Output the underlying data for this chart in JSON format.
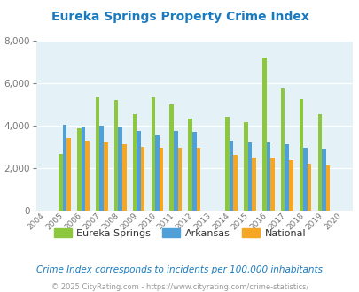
{
  "title": "Eureka Springs Property Crime Index",
  "title_color": "#1a7abf",
  "years": [
    2004,
    2005,
    2006,
    2007,
    2008,
    2009,
    2010,
    2011,
    2012,
    2013,
    2014,
    2015,
    2016,
    2017,
    2018,
    2019,
    2020
  ],
  "eureka_springs": [
    0,
    2650,
    3850,
    5350,
    5200,
    4550,
    5350,
    5000,
    4350,
    0,
    4400,
    4150,
    7200,
    5750,
    5250,
    4550,
    0
  ],
  "arkansas": [
    0,
    4050,
    3950,
    4000,
    3900,
    3750,
    3550,
    3750,
    3700,
    0,
    3300,
    3200,
    3200,
    3100,
    2950,
    2900,
    0
  ],
  "national": [
    0,
    3400,
    3300,
    3200,
    3100,
    3000,
    2950,
    2950,
    2950,
    0,
    2600,
    2500,
    2500,
    2350,
    2200,
    2100,
    0
  ],
  "bar_colors": [
    "#8dc63f",
    "#4fa0d8",
    "#f5a623"
  ],
  "ylim": [
    0,
    8000
  ],
  "yticks": [
    0,
    2000,
    4000,
    6000,
    8000
  ],
  "bg_color": "#e4f2f7",
  "grid_color": "#ffffff",
  "legend_labels": [
    "Eureka Springs",
    "Arkansas",
    "National"
  ],
  "footnote1": "Crime Index corresponds to incidents per 100,000 inhabitants",
  "footnote2": "© 2025 CityRating.com - https://www.cityrating.com/crime-statistics/",
  "footnote1_color": "#1a7abf",
  "footnote2_color": "#999999",
  "bar_width": 0.22
}
